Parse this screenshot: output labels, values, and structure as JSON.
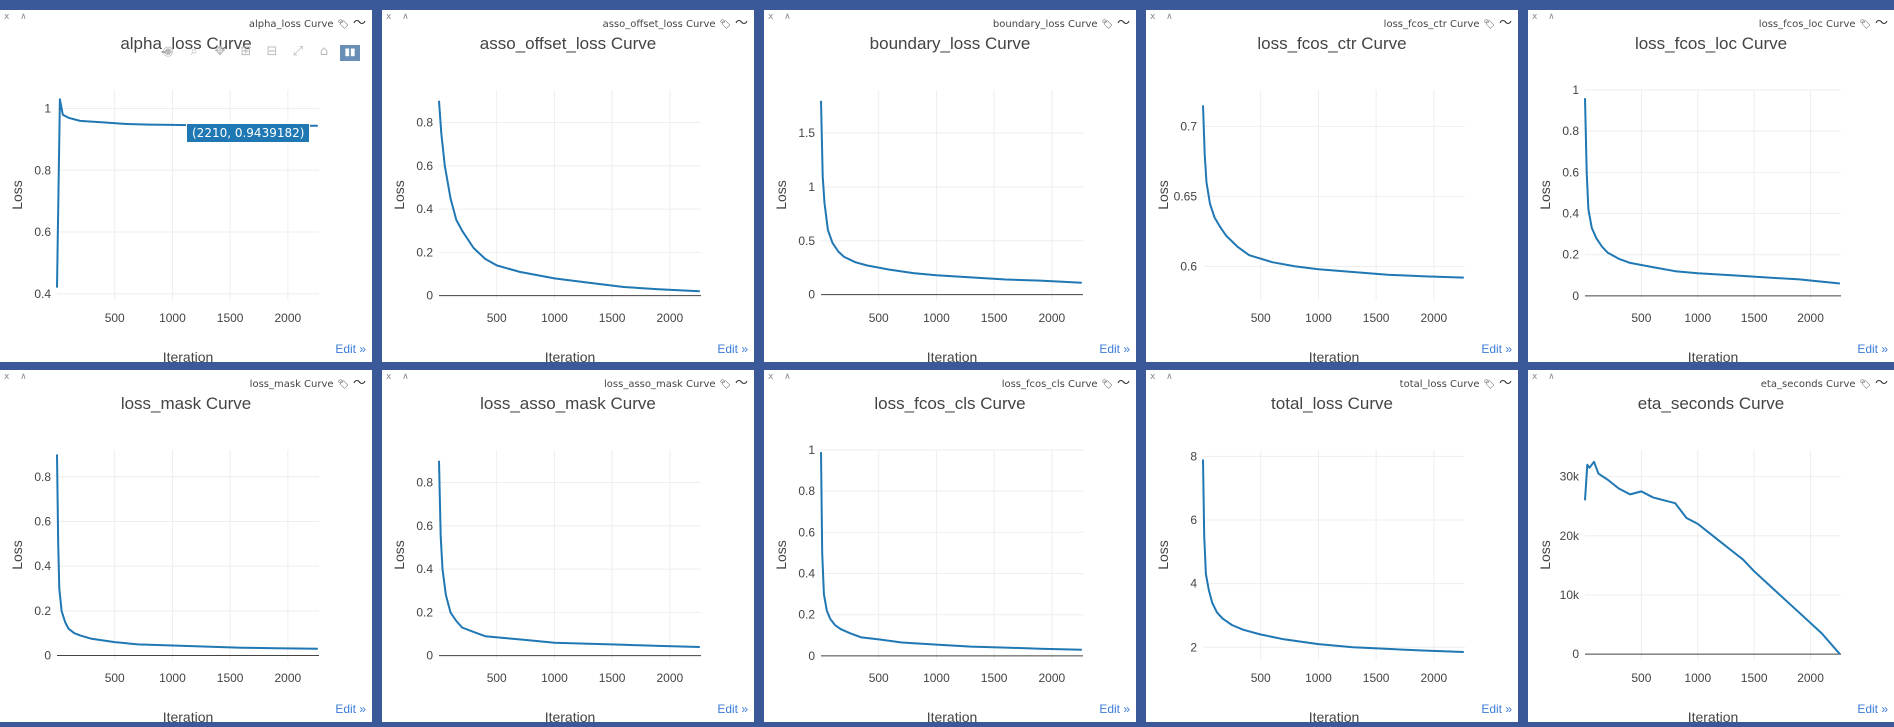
{
  "hover": {
    "text": "(2210, 0.9439182)"
  },
  "panels": [
    {
      "window_title": "alpha_loss Curve",
      "edit_label": "Edit »"
    },
    {
      "window_title": "asso_offset_loss Curve",
      "edit_label": "Edit »"
    },
    {
      "window_title": "boundary_loss Curve",
      "edit_label": "Edit »"
    },
    {
      "window_title": "loss_fcos_ctr Curve",
      "edit_label": "Edit »"
    },
    {
      "window_title": "loss_fcos_loc Curve",
      "edit_label": "Edit »"
    },
    {
      "window_title": "loss_mask Curve",
      "edit_label": "Edit »"
    },
    {
      "window_title": "loss_asso_mask Curve",
      "edit_label": "Edit »"
    },
    {
      "window_title": "loss_fcos_cls Curve",
      "edit_label": "Edit »"
    },
    {
      "window_title": "total_loss Curve",
      "edit_label": "Edit »"
    },
    {
      "window_title": "eta_seconds Curve",
      "edit_label": "Edit »"
    }
  ],
  "chart_data": [
    {
      "type": "line",
      "title": "alpha_loss Curve",
      "xlabel": "Iteration",
      "ylabel": "Loss",
      "xlim": [
        0,
        2270
      ],
      "ylim": [
        0.38,
        1.06
      ],
      "x_ticks": [
        500,
        1000,
        1500,
        2000
      ],
      "x_tick_labels": [
        "500",
        "1000",
        "1500",
        "2000"
      ],
      "y_ticks": [
        0.4,
        0.6,
        0.8,
        1
      ],
      "y_tick_labels": [
        "0.4",
        "0.6",
        "0.8",
        "1"
      ],
      "series": [
        {
          "color": "#1f77b4",
          "x": [
            0,
            25,
            50,
            100,
            200,
            400,
            600,
            800,
            1000,
            1200,
            1400,
            1600,
            1800,
            2000,
            2210,
            2260
          ],
          "y": [
            0.42,
            1.03,
            0.98,
            0.97,
            0.96,
            0.955,
            0.95,
            0.948,
            0.947,
            0.946,
            0.945,
            0.945,
            0.944,
            0.944,
            0.944,
            0.944
          ]
        }
      ]
    },
    {
      "type": "line",
      "title": "asso_offset_loss Curve",
      "xlabel": "Iteration",
      "ylabel": "Loss",
      "xlim": [
        0,
        2270
      ],
      "ylim": [
        -0.02,
        0.95
      ],
      "x_ticks": [
        500,
        1000,
        1500,
        2000
      ],
      "x_tick_labels": [
        "500",
        "1000",
        "1500",
        "2000"
      ],
      "y_ticks": [
        0,
        0.2,
        0.4,
        0.6,
        0.8
      ],
      "y_tick_labels": [
        "0",
        "0.2",
        "0.4",
        "0.6",
        "0.8"
      ],
      "series": [
        {
          "color": "#1f77b4",
          "x": [
            0,
            20,
            50,
            100,
            150,
            200,
            300,
            400,
            500,
            700,
            1000,
            1300,
            1600,
            1900,
            2260
          ],
          "y": [
            0.9,
            0.75,
            0.6,
            0.45,
            0.35,
            0.3,
            0.22,
            0.17,
            0.14,
            0.11,
            0.08,
            0.06,
            0.04,
            0.03,
            0.02
          ]
        }
      ]
    },
    {
      "type": "line",
      "title": "boundary_loss Curve",
      "xlabel": "Iteration",
      "ylabel": "Loss",
      "xlim": [
        0,
        2270
      ],
      "ylim": [
        -0.05,
        1.9
      ],
      "x_ticks": [
        500,
        1000,
        1500,
        2000
      ],
      "x_tick_labels": [
        "500",
        "1000",
        "1500",
        "2000"
      ],
      "y_ticks": [
        0,
        0.5,
        1,
        1.5
      ],
      "y_tick_labels": [
        "0",
        "0.5",
        "1",
        "1.5"
      ],
      "series": [
        {
          "color": "#1f77b4",
          "x": [
            0,
            15,
            30,
            60,
            100,
            150,
            200,
            300,
            400,
            600,
            800,
            1000,
            1300,
            1600,
            1900,
            2260
          ],
          "y": [
            1.8,
            1.1,
            0.85,
            0.6,
            0.48,
            0.4,
            0.35,
            0.3,
            0.27,
            0.23,
            0.2,
            0.18,
            0.16,
            0.14,
            0.13,
            0.11
          ]
        }
      ]
    },
    {
      "type": "line",
      "title": "loss_fcos_ctr Curve",
      "xlabel": "Iteration",
      "ylabel": "Loss",
      "xlim": [
        0,
        2270
      ],
      "ylim": [
        0.576,
        0.726
      ],
      "x_ticks": [
        500,
        1000,
        1500,
        2000
      ],
      "x_tick_labels": [
        "500",
        "1000",
        "1500",
        "2000"
      ],
      "y_ticks": [
        0.6,
        0.65,
        0.7
      ],
      "y_tick_labels": [
        "0.6",
        "0.65",
        "0.7"
      ],
      "series": [
        {
          "color": "#1f77b4",
          "x": [
            0,
            15,
            30,
            60,
            100,
            150,
            200,
            300,
            400,
            600,
            800,
            1000,
            1300,
            1600,
            1900,
            2260
          ],
          "y": [
            0.715,
            0.68,
            0.66,
            0.645,
            0.635,
            0.628,
            0.622,
            0.614,
            0.608,
            0.603,
            0.6,
            0.598,
            0.596,
            0.594,
            0.593,
            0.592
          ]
        }
      ]
    },
    {
      "type": "line",
      "title": "loss_fcos_loc Curve",
      "xlabel": "Iteration",
      "ylabel": "Loss",
      "xlim": [
        0,
        2270
      ],
      "ylim": [
        -0.02,
        1.0
      ],
      "x_ticks": [
        500,
        1000,
        1500,
        2000
      ],
      "x_tick_labels": [
        "500",
        "1000",
        "1500",
        "2000"
      ],
      "y_ticks": [
        0,
        0.2,
        0.4,
        0.6,
        0.8,
        1
      ],
      "y_tick_labels": [
        "0",
        "0.2",
        "0.4",
        "0.6",
        "0.8",
        "1"
      ],
      "series": [
        {
          "color": "#1f77b4",
          "x": [
            0,
            15,
            30,
            60,
            100,
            150,
            200,
            300,
            400,
            600,
            800,
            1000,
            1300,
            1600,
            1900,
            2260
          ],
          "y": [
            0.96,
            0.6,
            0.42,
            0.33,
            0.28,
            0.24,
            0.21,
            0.18,
            0.16,
            0.14,
            0.12,
            0.11,
            0.1,
            0.09,
            0.08,
            0.06
          ]
        }
      ]
    },
    {
      "type": "line",
      "title": "loss_mask Curve",
      "xlabel": "Iteration",
      "ylabel": "Loss",
      "xlim": [
        0,
        2270
      ],
      "ylim": [
        -0.02,
        0.92
      ],
      "x_ticks": [
        500,
        1000,
        1500,
        2000
      ],
      "x_tick_labels": [
        "500",
        "1000",
        "1500",
        "2000"
      ],
      "y_ticks": [
        0,
        0.2,
        0.4,
        0.6,
        0.8
      ],
      "y_tick_labels": [
        "0",
        "0.2",
        "0.4",
        "0.6",
        "0.8"
      ],
      "series": [
        {
          "color": "#1f77b4",
          "x": [
            0,
            10,
            20,
            40,
            70,
            100,
            150,
            200,
            300,
            500,
            700,
            1000,
            1300,
            1600,
            1900,
            2260
          ],
          "y": [
            0.9,
            0.5,
            0.3,
            0.2,
            0.15,
            0.12,
            0.1,
            0.09,
            0.075,
            0.06,
            0.05,
            0.045,
            0.04,
            0.035,
            0.033,
            0.03
          ]
        }
      ]
    },
    {
      "type": "line",
      "title": "loss_asso_mask Curve",
      "xlabel": "Iteration",
      "ylabel": "Loss",
      "xlim": [
        0,
        2270
      ],
      "ylim": [
        -0.02,
        0.95
      ],
      "x_ticks": [
        500,
        1000,
        1500,
        2000
      ],
      "x_tick_labels": [
        "500",
        "1000",
        "1500",
        "2000"
      ],
      "y_ticks": [
        0,
        0.2,
        0.4,
        0.6,
        0.8
      ],
      "y_tick_labels": [
        "0",
        "0.2",
        "0.4",
        "0.6",
        "0.8"
      ],
      "series": [
        {
          "color": "#1f77b4",
          "x": [
            0,
            15,
            30,
            60,
            100,
            150,
            200,
            300,
            400,
            600,
            800,
            1000,
            1300,
            1600,
            1900,
            2260
          ],
          "y": [
            0.9,
            0.55,
            0.4,
            0.28,
            0.2,
            0.16,
            0.13,
            0.11,
            0.09,
            0.08,
            0.07,
            0.06,
            0.055,
            0.05,
            0.045,
            0.04
          ]
        }
      ]
    },
    {
      "type": "line",
      "title": "loss_fcos_cls Curve",
      "xlabel": "Iteration",
      "ylabel": "Loss",
      "xlim": [
        0,
        2270
      ],
      "ylim": [
        -0.02,
        1.0
      ],
      "x_ticks": [
        500,
        1000,
        1500,
        2000
      ],
      "x_tick_labels": [
        "500",
        "1000",
        "1500",
        "2000"
      ],
      "y_ticks": [
        0,
        0.2,
        0.4,
        0.6,
        0.8,
        1
      ],
      "y_tick_labels": [
        "0",
        "0.2",
        "0.4",
        "0.6",
        "0.8",
        "1"
      ],
      "series": [
        {
          "color": "#1f77b4",
          "x": [
            0,
            10,
            25,
            50,
            80,
            120,
            170,
            250,
            350,
            500,
            700,
            1000,
            1300,
            1600,
            1900,
            2260
          ],
          "y": [
            0.99,
            0.5,
            0.3,
            0.22,
            0.18,
            0.15,
            0.13,
            0.11,
            0.09,
            0.08,
            0.065,
            0.055,
            0.045,
            0.04,
            0.035,
            0.03
          ]
        }
      ]
    },
    {
      "type": "line",
      "title": "total_loss Curve",
      "xlabel": "Iteration",
      "ylabel": "Loss",
      "xlim": [
        0,
        2270
      ],
      "ylim": [
        1.6,
        8.2
      ],
      "x_ticks": [
        500,
        1000,
        1500,
        2000
      ],
      "x_tick_labels": [
        "500",
        "1000",
        "1500",
        "2000"
      ],
      "y_ticks": [
        2,
        4,
        6,
        8
      ],
      "y_tick_labels": [
        "2",
        "4",
        "6",
        "8"
      ],
      "series": [
        {
          "color": "#1f77b4",
          "x": [
            0,
            10,
            25,
            50,
            80,
            120,
            170,
            250,
            350,
            500,
            700,
            1000,
            1300,
            1600,
            1900,
            2260
          ],
          "y": [
            7.9,
            5.5,
            4.3,
            3.8,
            3.4,
            3.1,
            2.9,
            2.7,
            2.55,
            2.4,
            2.25,
            2.1,
            2.0,
            1.95,
            1.9,
            1.85
          ]
        }
      ]
    },
    {
      "type": "line",
      "title": "eta_seconds Curve",
      "xlabel": "Iteration",
      "ylabel": "Loss",
      "xlim": [
        0,
        2270
      ],
      "ylim": [
        -1000,
        34500
      ],
      "x_ticks": [
        500,
        1000,
        1500,
        2000
      ],
      "x_tick_labels": [
        "500",
        "1000",
        "1500",
        "2000"
      ],
      "y_ticks": [
        0,
        10000,
        20000,
        30000
      ],
      "y_tick_labels": [
        "0",
        "10k",
        "20k",
        "30k"
      ],
      "series": [
        {
          "color": "#1f77b4",
          "x": [
            0,
            20,
            40,
            80,
            120,
            200,
            300,
            400,
            500,
            600,
            700,
            800,
            900,
            1000,
            1100,
            1200,
            1300,
            1400,
            1500,
            1700,
            1900,
            2100,
            2260
          ],
          "y": [
            26000,
            32000,
            31500,
            32500,
            30500,
            29500,
            28000,
            27000,
            27500,
            26500,
            26000,
            25500,
            23000,
            22000,
            20500,
            19000,
            17500,
            16000,
            14000,
            10500,
            7000,
            3500,
            0
          ]
        }
      ]
    }
  ]
}
